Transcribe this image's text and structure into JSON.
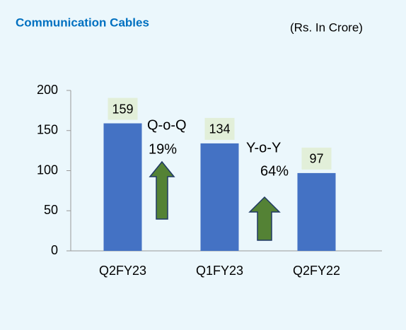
{
  "chart_data": {
    "type": "bar",
    "title": "Communication Cables",
    "subtitle": "(Rs. In Crore)",
    "categories": [
      "Q2FY23",
      "Q1FY23",
      "Q2FY22"
    ],
    "values": [
      159,
      134,
      97
    ],
    "color": "#4472c4",
    "value_label_color": "#e2efd9",
    "ylim": [
      0,
      200
    ],
    "yticks": [
      0,
      50,
      100,
      150,
      200
    ],
    "grid": false,
    "annotations": [
      "Q-o-Q",
      "19%",
      "Y-o-Y",
      "64%"
    ]
  }
}
